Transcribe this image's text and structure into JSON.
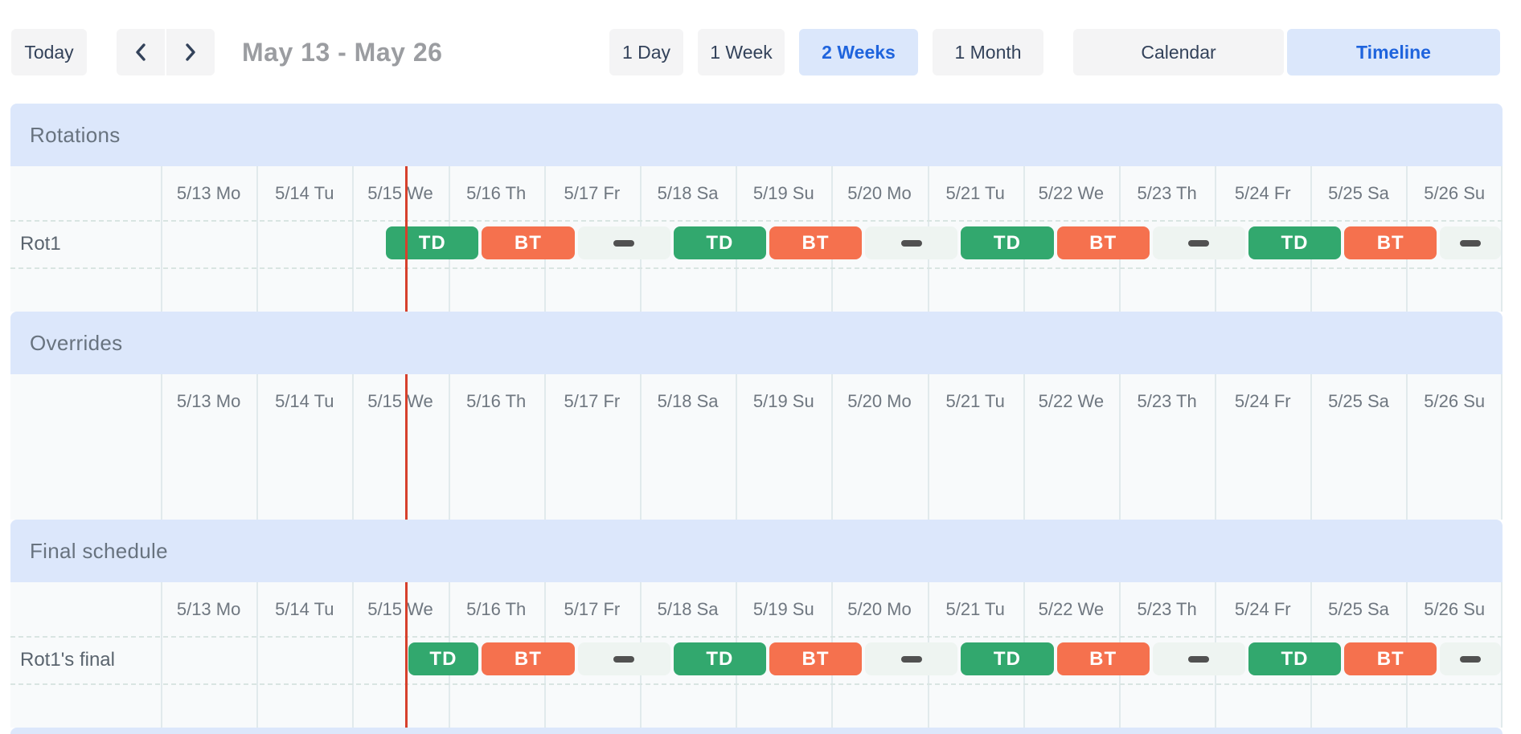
{
  "toolbar": {
    "today": "Today",
    "prev_icon": "chevron-left-icon",
    "next_icon": "chevron-right-icon",
    "date_range": "May 13 - May 26",
    "views": [
      {
        "label": "1 Day",
        "selected": false
      },
      {
        "label": "1 Week",
        "selected": false
      },
      {
        "label": "2 Weeks",
        "selected": true
      },
      {
        "label": "1 Month",
        "selected": false
      }
    ],
    "modes": [
      {
        "label": "Calendar",
        "selected": false
      },
      {
        "label": "Timeline",
        "selected": true
      }
    ]
  },
  "colors": {
    "button_bg": "#f4f4f5",
    "button_text": "#33425a",
    "selected_bg": "#dbe7fb",
    "accent_blue": "#1f64dd",
    "section_header_bg": "#dce7fb",
    "rows_bg": "#f8fafb",
    "grid_line": "#e1eaec",
    "dashed_line": "#d9e5e2",
    "td_green": "#32a86e",
    "bt_orange": "#f5714e",
    "gap_bg": "#eef4f1",
    "gap_dash": "#515151",
    "now_red": "#d6402c"
  },
  "schedule": {
    "day_labels": [
      "5/13 Mo",
      "5/14 Tu",
      "5/15 We",
      "5/16 Th",
      "5/17 Fr",
      "5/18 Sa",
      "5/19 Su",
      "5/20 Mo",
      "5/21 Tu",
      "5/22 We",
      "5/23 Th",
      "5/24 Fr",
      "5/25 Sa",
      "5/26 Su"
    ],
    "now_day": 2.563,
    "sections": [
      {
        "title": "Rotations",
        "rows": [
          {
            "label": "Rot1",
            "events": [
              {
                "kind": "shift",
                "label": "TD",
                "start": 2.3333,
                "end": 3.3333
              },
              {
                "kind": "shift",
                "label": "BT",
                "start": 3.3333,
                "end": 4.3333
              },
              {
                "kind": "gap",
                "start": 4.3333,
                "end": 5.3333
              },
              {
                "kind": "shift",
                "label": "TD",
                "start": 5.3333,
                "end": 6.3333
              },
              {
                "kind": "shift",
                "label": "BT",
                "start": 6.3333,
                "end": 7.3333
              },
              {
                "kind": "gap",
                "start": 7.3333,
                "end": 8.3333
              },
              {
                "kind": "shift",
                "label": "TD",
                "start": 8.3333,
                "end": 9.3333
              },
              {
                "kind": "shift",
                "label": "BT",
                "start": 9.3333,
                "end": 10.3333
              },
              {
                "kind": "gap",
                "start": 10.3333,
                "end": 11.3333
              },
              {
                "kind": "shift",
                "label": "TD",
                "start": 11.3333,
                "end": 12.3333
              },
              {
                "kind": "shift",
                "label": "BT",
                "start": 12.3333,
                "end": 13.3333
              },
              {
                "kind": "gap",
                "start": 13.3333,
                "end": 14
              }
            ]
          }
        ]
      },
      {
        "title": "Overrides",
        "rows": []
      },
      {
        "title": "Final schedule",
        "rows": [
          {
            "label": "Rot1's final",
            "events": [
              {
                "kind": "shift",
                "label": "TD",
                "start": 2.563,
                "end": 3.3333
              },
              {
                "kind": "shift",
                "label": "BT",
                "start": 3.3333,
                "end": 4.3333
              },
              {
                "kind": "gap",
                "start": 4.3333,
                "end": 5.3333
              },
              {
                "kind": "shift",
                "label": "TD",
                "start": 5.3333,
                "end": 6.3333
              },
              {
                "kind": "shift",
                "label": "BT",
                "start": 6.3333,
                "end": 7.3333
              },
              {
                "kind": "gap",
                "start": 7.3333,
                "end": 8.3333
              },
              {
                "kind": "shift",
                "label": "TD",
                "start": 8.3333,
                "end": 9.3333
              },
              {
                "kind": "shift",
                "label": "BT",
                "start": 9.3333,
                "end": 10.3333
              },
              {
                "kind": "gap",
                "start": 10.3333,
                "end": 11.3333
              },
              {
                "kind": "shift",
                "label": "TD",
                "start": 11.3333,
                "end": 12.3333
              },
              {
                "kind": "shift",
                "label": "BT",
                "start": 12.3333,
                "end": 13.3333
              },
              {
                "kind": "gap",
                "start": 13.3333,
                "end": 14
              }
            ]
          }
        ]
      }
    ]
  }
}
